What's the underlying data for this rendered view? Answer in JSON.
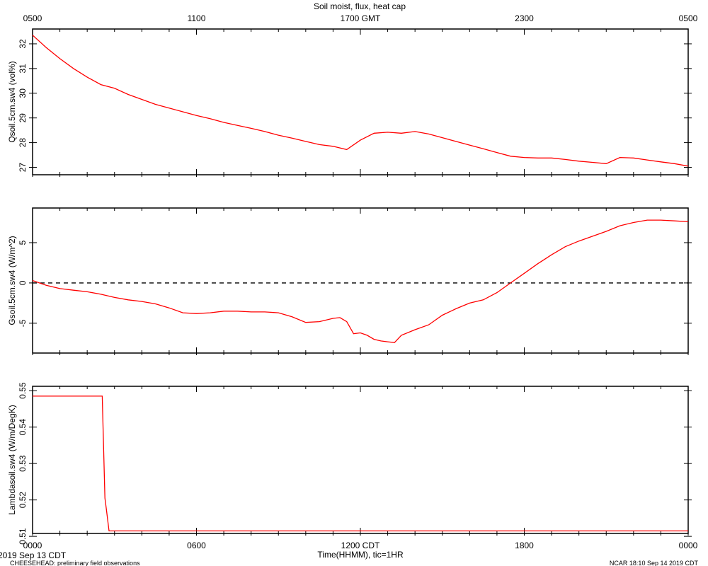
{
  "title": "Soil moist, flux, heat cap",
  "top_axis_labels": [
    "0500",
    "1100",
    "1700 GMT",
    "2300",
    "0500"
  ],
  "bottom_axis_labels": [
    "0000",
    "0600",
    "1200 CDT",
    "1800",
    "0000"
  ],
  "bottom_axis_title": "Time(HHMM), tic=1HR",
  "start_date": "2019 Sep 13 CDT",
  "footer_left": "CHEESEHEAD: preliminary field observations",
  "footer_right": "NCAR 18:10 Sep 14 2019 CDT",
  "colors": {
    "series": "#ff0000",
    "axes": "#000000"
  },
  "chart_data": [
    {
      "type": "line",
      "ylabel": "Qsoil.5cm.sw4 (vol%)",
      "ylim": [
        26.7,
        32.6
      ],
      "yticks": [
        27,
        28,
        29,
        30,
        31,
        32
      ],
      "xlim": [
        0,
        24
      ],
      "series": [
        {
          "x": [
            0,
            0.5,
            1,
            1.5,
            2,
            2.5,
            3,
            3.5,
            4,
            4.5,
            5,
            5.5,
            6,
            6.5,
            7,
            7.5,
            8,
            8.5,
            9,
            9.5,
            10,
            10.5,
            11,
            11.5,
            12,
            12.5,
            13,
            13.5,
            14,
            14.5,
            15,
            15.5,
            16,
            16.5,
            17,
            17.5,
            18,
            18.5,
            19,
            19.5,
            20,
            20.5,
            21,
            21.5,
            22,
            22.5,
            23,
            23.5,
            24
          ],
          "y": [
            32.35,
            31.85,
            31.4,
            31.0,
            30.65,
            30.35,
            30.2,
            29.95,
            29.75,
            29.55,
            29.4,
            29.25,
            29.1,
            28.97,
            28.82,
            28.7,
            28.58,
            28.45,
            28.3,
            28.18,
            28.05,
            27.92,
            27.85,
            27.72,
            28.1,
            28.38,
            28.42,
            28.38,
            28.45,
            28.35,
            28.2,
            28.05,
            27.9,
            27.75,
            27.6,
            27.45,
            27.4,
            27.38,
            27.38,
            27.32,
            27.25,
            27.2,
            27.15,
            27.4,
            27.38,
            27.3,
            27.22,
            27.15,
            27.05
          ]
        }
      ]
    },
    {
      "type": "line",
      "ylabel": "Gsoil.5cm.sw4 (W/m^2)",
      "ylim": [
        -8.7,
        9.3
      ],
      "yticks": [
        -5,
        0,
        5
      ],
      "xlim": [
        0,
        24
      ],
      "reference_line": 0,
      "series": [
        {
          "x": [
            0,
            0.5,
            1,
            1.5,
            2,
            2.5,
            3,
            3.5,
            4,
            4.5,
            5,
            5.5,
            6,
            6.5,
            7,
            7.5,
            8,
            8.5,
            9,
            9.5,
            10,
            10.5,
            11,
            11.25,
            11.5,
            11.75,
            12,
            12.25,
            12.5,
            12.75,
            13,
            13.25,
            13.5,
            14,
            14.5,
            15,
            15.5,
            16,
            16.5,
            17,
            17.5,
            18,
            18.5,
            19,
            19.5,
            20,
            20.5,
            21,
            21.5,
            22,
            22.5,
            23,
            23.5,
            24
          ],
          "y": [
            0.3,
            -0.3,
            -0.7,
            -0.9,
            -1.1,
            -1.4,
            -1.8,
            -2.1,
            -2.3,
            -2.6,
            -3.1,
            -3.7,
            -3.8,
            -3.7,
            -3.5,
            -3.5,
            -3.6,
            -3.6,
            -3.7,
            -4.2,
            -4.9,
            -4.8,
            -4.4,
            -4.3,
            -4.8,
            -6.3,
            -6.2,
            -6.5,
            -7.0,
            -7.2,
            -7.3,
            -7.4,
            -6.5,
            -5.8,
            -5.2,
            -4.0,
            -3.2,
            -2.5,
            -2.1,
            -1.2,
            0.0,
            1.2,
            2.4,
            3.5,
            4.5,
            5.2,
            5.8,
            6.4,
            7.1,
            7.5,
            7.8,
            7.8,
            7.7,
            7.6
          ]
        }
      ]
    },
    {
      "type": "line",
      "ylabel": "Lambdasoil.sw4 (W/m/DegK)",
      "ylim": [
        0.5108,
        0.5512
      ],
      "yticks": [
        0.51,
        0.52,
        0.53,
        0.54,
        0.55
      ],
      "xlim": [
        0,
        24
      ],
      "series": [
        {
          "x": [
            0,
            2.55,
            2.65,
            2.7,
            2.8,
            24
          ],
          "y": [
            0.5485,
            0.5485,
            0.5205,
            0.5175,
            0.5115,
            0.5115
          ]
        }
      ]
    }
  ]
}
